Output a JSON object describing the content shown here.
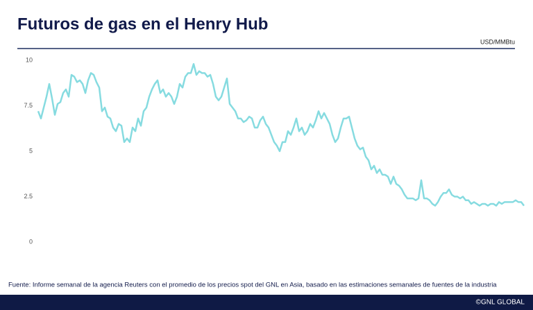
{
  "chart_data": {
    "type": "line",
    "title": "Futuros de gas en el Henry Hub",
    "y_label": "USD/MMBtu",
    "source": "Fuente: Informe semanal de la agencia Reuters con el promedio de los precios spot del GNL en Asia, basado en las estimaciones semanales de fuentes de la industria",
    "footer": "©GNL GLOBAL",
    "color": "#86dbe0",
    "ylim": [
      0,
      10
    ],
    "yticks": [
      0,
      2.5,
      5,
      7.5,
      10
    ],
    "grid": false,
    "values": [
      7.2,
      6.8,
      7.4,
      8.0,
      8.7,
      7.9,
      7.0,
      7.6,
      7.7,
      8.2,
      8.4,
      8.0,
      9.2,
      9.1,
      8.8,
      8.9,
      8.7,
      8.2,
      8.9,
      9.3,
      9.2,
      8.8,
      8.5,
      7.2,
      7.4,
      6.9,
      6.8,
      6.3,
      6.1,
      6.5,
      6.4,
      5.5,
      5.7,
      5.5,
      6.3,
      6.1,
      6.8,
      6.4,
      7.2,
      7.4,
      8.0,
      8.4,
      8.7,
      8.9,
      8.2,
      8.4,
      8.0,
      8.2,
      8.0,
      7.6,
      8.0,
      8.7,
      8.5,
      9.1,
      9.3,
      9.3,
      9.8,
      9.2,
      9.4,
      9.3,
      9.3,
      9.1,
      9.2,
      8.7,
      8.0,
      7.8,
      8.0,
      8.5,
      9.0,
      7.6,
      7.4,
      7.2,
      6.8,
      6.8,
      6.6,
      6.7,
      6.9,
      6.8,
      6.3,
      6.3,
      6.7,
      6.9,
      6.5,
      6.3,
      5.9,
      5.5,
      5.3,
      5.0,
      5.5,
      5.5,
      6.1,
      5.9,
      6.3,
      6.8,
      6.1,
      6.3,
      5.9,
      6.1,
      6.5,
      6.3,
      6.7,
      7.2,
      6.8,
      7.1,
      6.8,
      6.5,
      5.9,
      5.5,
      5.7,
      6.3,
      6.8,
      6.8,
      6.9,
      6.3,
      5.7,
      5.3,
      5.1,
      5.2,
      4.7,
      4.5,
      4.0,
      4.2,
      3.8,
      4.0,
      3.7,
      3.7,
      3.6,
      3.2,
      3.6,
      3.2,
      3.1,
      2.9,
      2.6,
      2.4,
      2.4,
      2.4,
      2.3,
      2.4,
      3.4,
      2.4,
      2.4,
      2.3,
      2.1,
      2.0,
      2.2,
      2.5,
      2.7,
      2.7,
      2.9,
      2.6,
      2.5,
      2.5,
      2.4,
      2.5,
      2.3,
      2.3,
      2.1,
      2.2,
      2.1,
      2.0,
      2.1,
      2.1,
      2.0,
      2.1,
      2.1,
      2.0,
      2.2,
      2.1,
      2.2,
      2.2,
      2.2,
      2.2,
      2.3,
      2.2,
      2.2,
      2.0
    ]
  }
}
